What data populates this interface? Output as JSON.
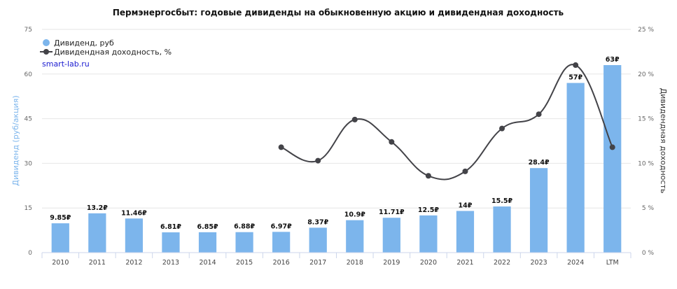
{
  "chart_data": {
    "type": "bar",
    "title": "Пермэнергосбыт: годовые дивиденды на обыкновенную акцию и дивидендная доходность",
    "ylabel": "Дивиденд (руб/акция)",
    "y2label": "Дивидендная доходность",
    "ylim": [
      0,
      75
    ],
    "yticks": [
      "0",
      "15",
      "30",
      "45",
      "60",
      "75"
    ],
    "y2lim": [
      0,
      25
    ],
    "y2ticks": [
      "0 %",
      "5 %",
      "10 %",
      "15 %",
      "20 %",
      "25 %"
    ],
    "grid": true,
    "legend_position": "top-left",
    "credit": "smart-lab.ru",
    "categories": [
      "2010",
      "2011",
      "2012",
      "2013",
      "2014",
      "2015",
      "2016",
      "2017",
      "2018",
      "2019",
      "2020",
      "2021",
      "2022",
      "2023",
      "2024",
      "LTM"
    ],
    "series": [
      {
        "name": "Дивиденд, руб",
        "kind": "bar",
        "color": "#7cb5ec",
        "values": [
          9.85,
          13.2,
          11.46,
          6.81,
          6.85,
          6.88,
          6.97,
          8.37,
          10.9,
          11.71,
          12.5,
          14,
          15.5,
          28.4,
          57,
          63
        ],
        "labels": [
          "9.85₽",
          "13.2₽",
          "11.46₽",
          "6.81₽",
          "6.85₽",
          "6.88₽",
          "6.97₽",
          "8.37₽",
          "10.9₽",
          "11.71₽",
          "12.5₽",
          "14₽",
          "15.5₽",
          "28.4₽",
          "57₽",
          "63₽"
        ]
      },
      {
        "name": "Дивидендная доходность, %",
        "kind": "line",
        "axis": "right",
        "color": "#434348",
        "values": [
          null,
          null,
          null,
          null,
          null,
          null,
          11.8,
          10.3,
          14.9,
          12.4,
          8.6,
          9.1,
          13.9,
          15.5,
          21.0,
          11.8
        ]
      }
    ]
  }
}
